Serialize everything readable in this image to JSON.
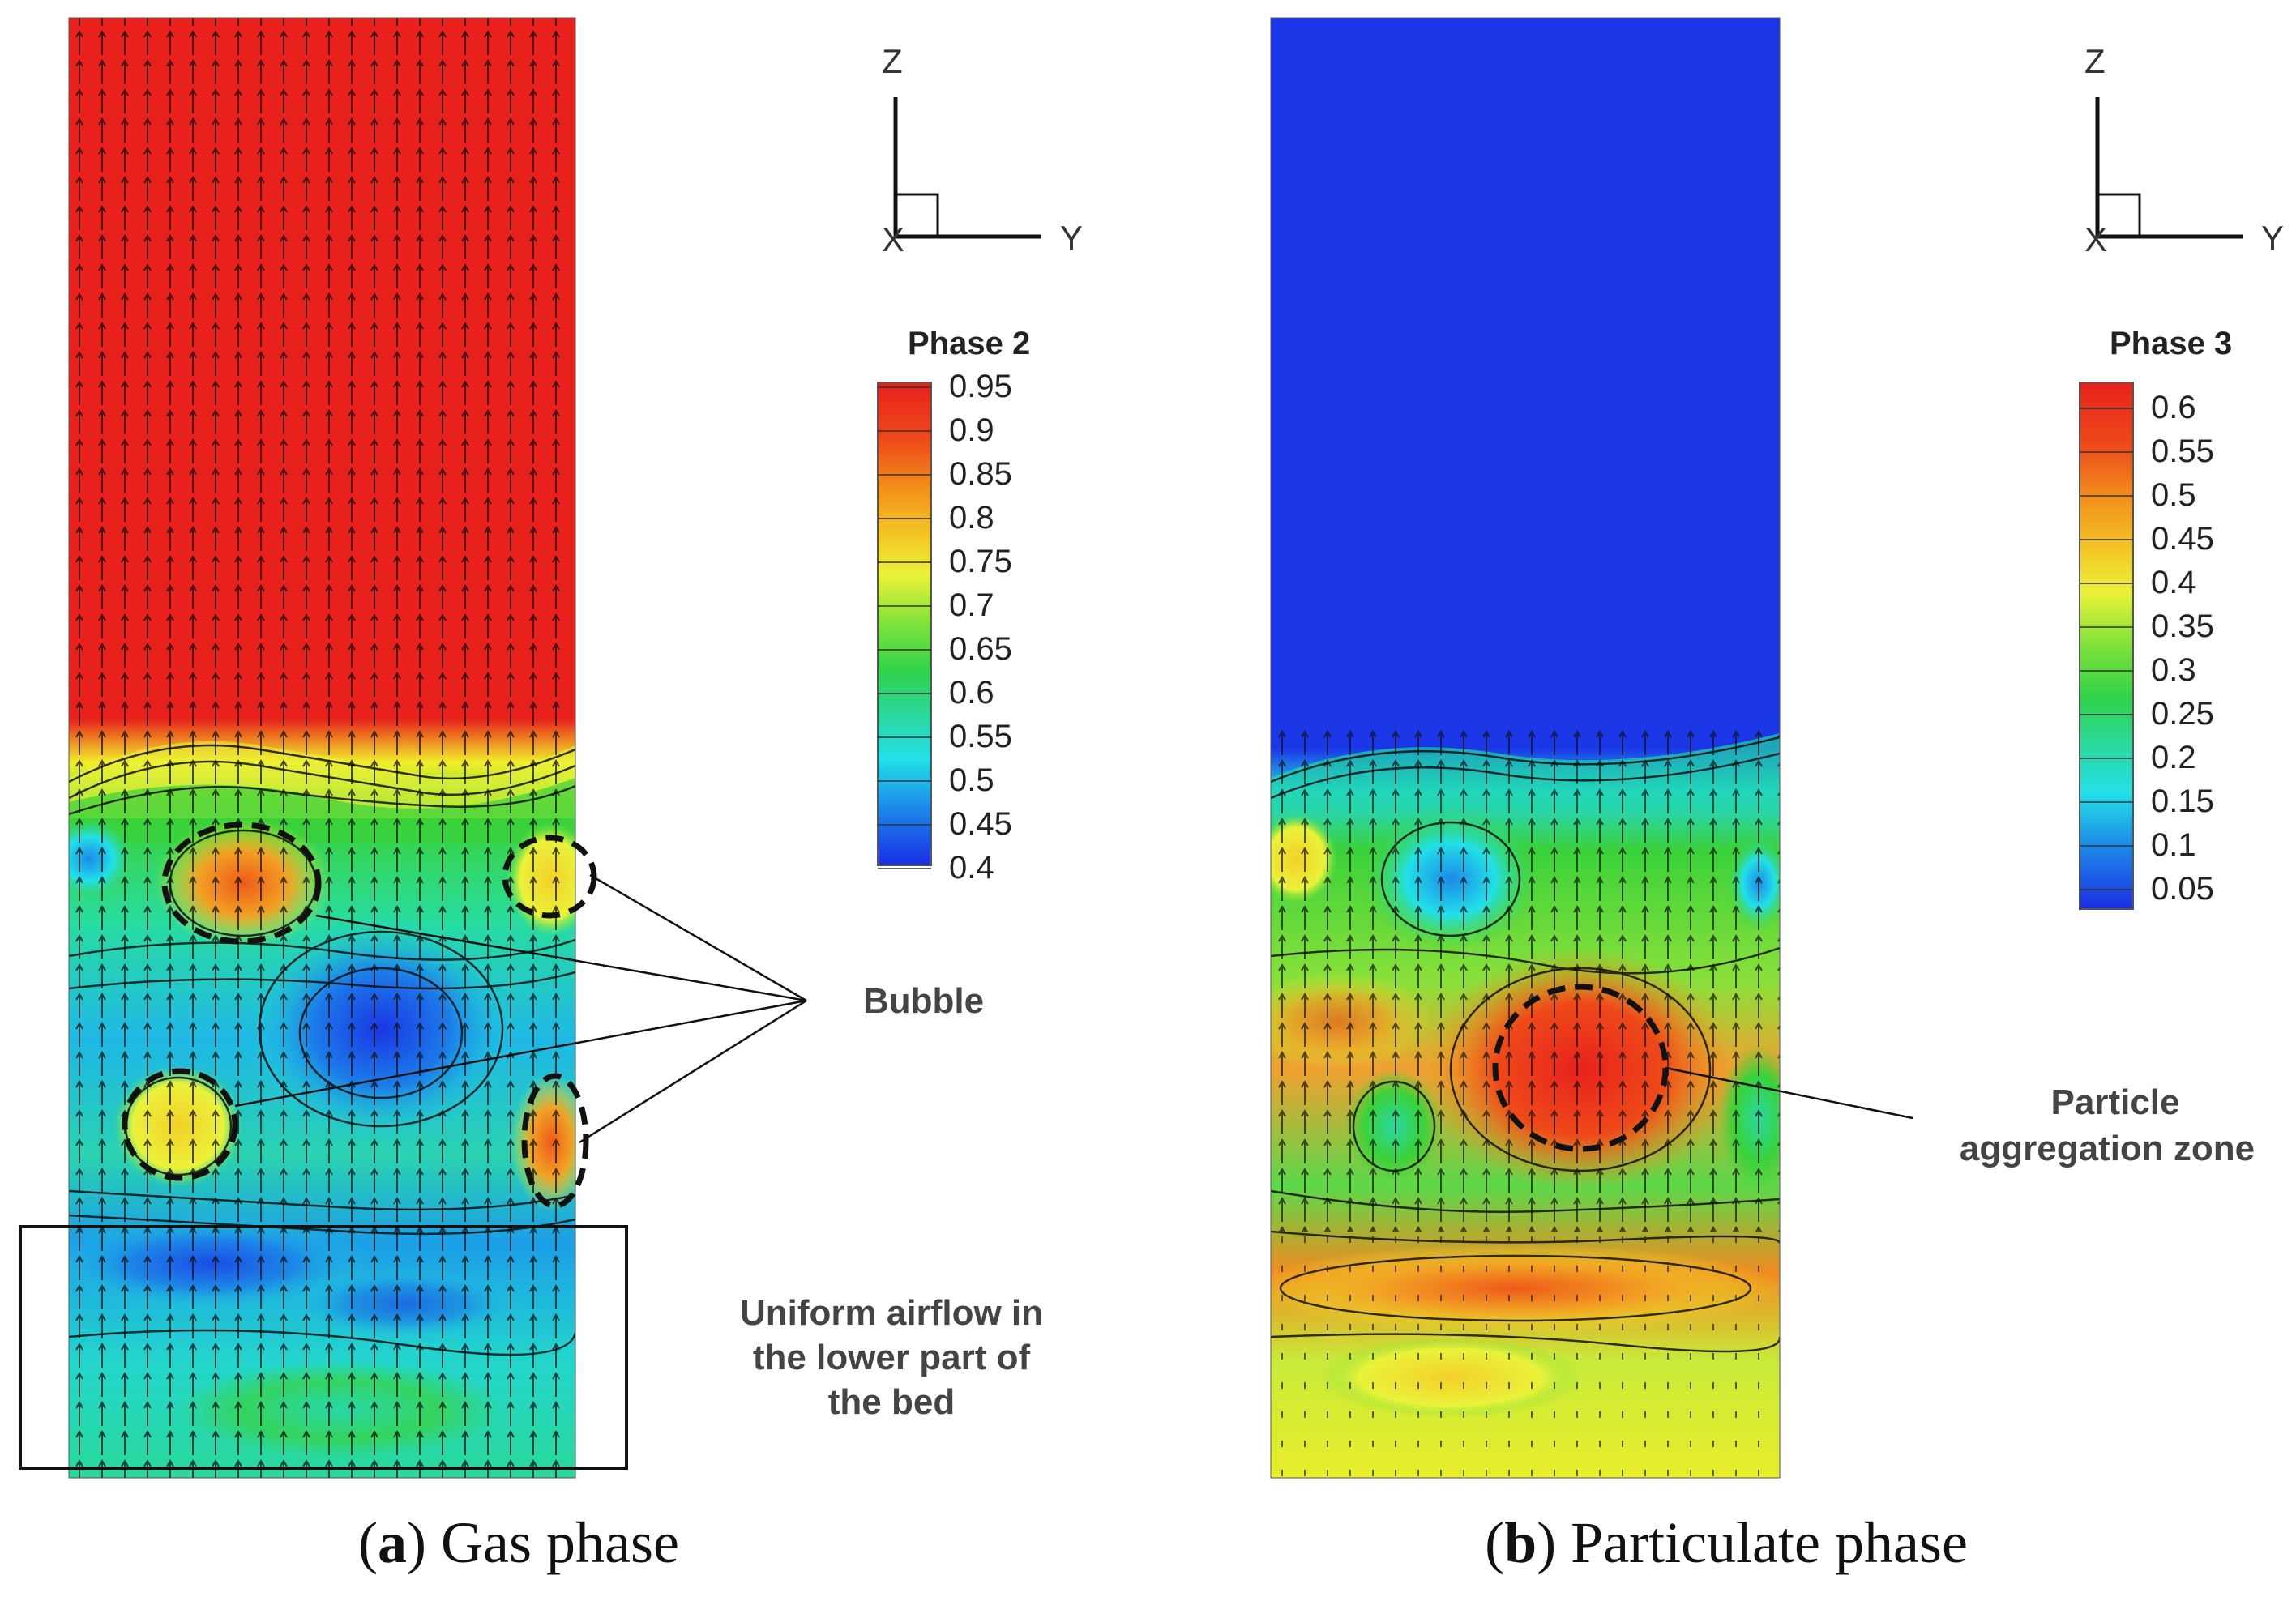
{
  "panel_a": {
    "caption_letter": "a",
    "caption_text": "Gas phase",
    "axes": {
      "z": "Z",
      "y": "Y",
      "x": "X"
    },
    "legend": {
      "title": "Phase 2",
      "ticks": [
        "0.95",
        "0.9",
        "0.85",
        "0.8",
        "0.75",
        "0.7",
        "0.65",
        "0.6",
        "0.55",
        "0.5",
        "0.45",
        "0.4"
      ]
    },
    "annotations": {
      "bubble": "Bubble",
      "uniform_airflow": [
        "Uniform airflow in",
        "the lower part of",
        "the bed"
      ]
    }
  },
  "panel_b": {
    "caption_letter": "b",
    "caption_text": "Particulate phase",
    "axes": {
      "z": "Z",
      "y": "Y",
      "x": "X"
    },
    "legend": {
      "title": "Phase 3",
      "ticks": [
        "0.6",
        "0.55",
        "0.5",
        "0.45",
        "0.4",
        "0.35",
        "0.3",
        "0.25",
        "0.2",
        "0.15",
        "0.1",
        "0.05"
      ]
    },
    "annotations": {
      "aggregation": [
        "Particle",
        "aggregation zone"
      ]
    }
  },
  "colors": {
    "red": "#e8211c",
    "orange": "#f07a1c",
    "yellow": "#f2ee2a",
    "green": "#3bd23a",
    "cyan": "#1fd9e6",
    "blue": "#1a36e6"
  }
}
